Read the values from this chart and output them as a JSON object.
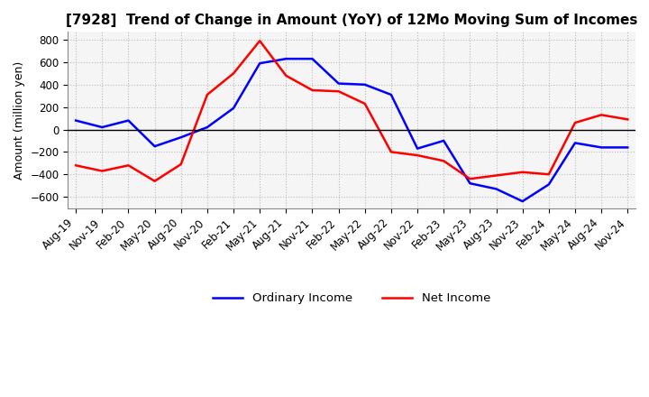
{
  "title": "[7928]  Trend of Change in Amount (YoY) of 12Mo Moving Sum of Incomes",
  "ylabel": "Amount (million yen)",
  "xlim_labels": [
    "Aug-19",
    "Nov-19",
    "Feb-20",
    "May-20",
    "Aug-20",
    "Nov-20",
    "Feb-21",
    "May-21",
    "Aug-21",
    "Nov-21",
    "Feb-22",
    "May-22",
    "Aug-22",
    "Nov-22",
    "Feb-23",
    "May-23",
    "Aug-23",
    "Nov-23",
    "Feb-24",
    "May-24",
    "Aug-24",
    "Nov-24"
  ],
  "ylim": [
    -700,
    870
  ],
  "yticks": [
    -600,
    -400,
    -200,
    0,
    200,
    400,
    600,
    800
  ],
  "ordinary_income": [
    80,
    20,
    80,
    -150,
    -70,
    20,
    190,
    590,
    630,
    630,
    410,
    400,
    310,
    -170,
    -100,
    -480,
    -530,
    -640,
    -490,
    -120,
    -160,
    -160
  ],
  "net_income": [
    -320,
    -370,
    -320,
    -460,
    -310,
    310,
    500,
    790,
    480,
    350,
    340,
    230,
    -200,
    -230,
    -280,
    -440,
    -410,
    -380,
    -400,
    60,
    130,
    90
  ],
  "ordinary_color": "#0000ff",
  "net_color": "#ff0000",
  "background_color": "#ffffff",
  "plot_bg_color": "#f5f5f5",
  "grid_color": "#bbbbbb",
  "legend_labels": [
    "Ordinary Income",
    "Net Income"
  ],
  "title_fontsize": 11,
  "axis_fontsize": 9,
  "tick_fontsize": 8.5
}
